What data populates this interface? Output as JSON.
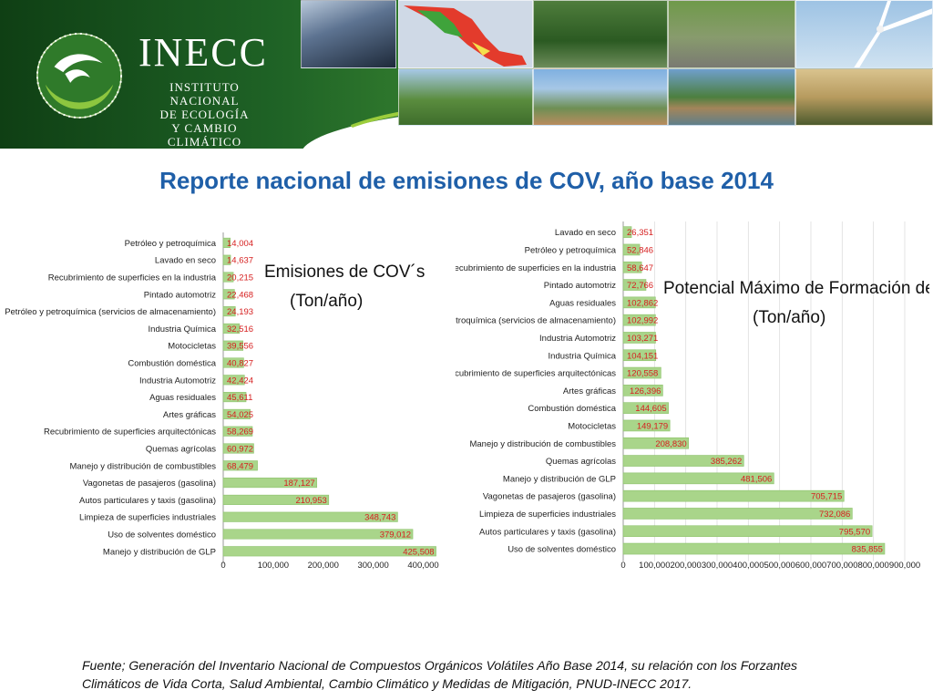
{
  "header": {
    "org_name": "INECC",
    "org_line1": "INSTITUTO NACIONAL",
    "org_line2": "DE ECOLOGÍA",
    "org_line3": "Y CAMBIO CLIMÁTICO"
  },
  "title": "Reporte nacional de emisiones de COV, año base 2014",
  "source_line1": "Fuente; Generación del Inventario Nacional de Compuestos Orgánicos Volátiles Año Base 2014, su relación con los Forzantes",
  "source_line2": "Climáticos de Vida Corta, Salud Ambiental, Cambio Climático y Medidas de Mitigación, PNUD-INECC 2017.",
  "colors": {
    "bar_fill": "#a9d58a",
    "bar_stroke": "#8cc26b",
    "value_label": "#d62020",
    "title": "#1f5fa8"
  },
  "chart_data": [
    {
      "type": "bar",
      "orientation": "horizontal",
      "title_line1": "Emisiones de COV´s",
      "title_line2": "(Ton/año)",
      "categories": [
        "Petróleo y petroquímica",
        "Lavado en seco",
        "Recubrimiento de superficies en la industria",
        "Pintado automotriz",
        "Petróleo y petroquímica (servicios de almacenamiento)",
        "Industria Química",
        "Motocicletas",
        "Combustión doméstica",
        "Industria Automotriz",
        "Aguas residuales",
        "Artes gráficas",
        "Recubrimiento de superficies arquitectónicas",
        "Quemas agrícolas",
        "Manejo y distribución de combustibles",
        "Vagonetas de pasajeros (gasolina)",
        "Autos particulares y taxis (gasolina)",
        "Limpieza de superficies industriales",
        "Uso de solventes doméstico",
        "Manejo y distribución de GLP"
      ],
      "values": [
        14004,
        14637,
        20215,
        22468,
        24193,
        32516,
        39556,
        40827,
        42424,
        45611,
        54025,
        58269,
        60972,
        68479,
        187127,
        210953,
        348743,
        379012,
        425508
      ],
      "value_labels": [
        "14,004",
        "14,637",
        "20,215",
        "22,468",
        "24,193",
        "32,516",
        "39,556",
        "40,827",
        "42,424",
        "45,611",
        "54,025",
        "58,269",
        "60,972",
        "68,479",
        "187,127",
        "210,953",
        "348,743",
        "379,012",
        "425,508"
      ],
      "xticks": [
        0,
        100000,
        200000,
        300000,
        400000
      ],
      "xtick_labels": [
        "0",
        "100,000",
        "200,000",
        "300,000",
        "400,000"
      ],
      "xlim": [
        0,
        450000
      ],
      "grid": false
    },
    {
      "type": "bar",
      "orientation": "horizontal",
      "title_line1": "Potencial Máximo de Formación de Ozono",
      "title_line2": "(Ton/año)",
      "categories": [
        "Lavado en seco",
        "Petróleo y petroquímica",
        "Recubrimiento de superficies en la industria",
        "Pintado automotriz",
        "Aguas residuales",
        "Petróleo y petroquímica (servicios de almacenamiento)",
        "Industria Automotriz",
        "Industria Química",
        "Recubrimiento de superficies arquitectónicas",
        "Artes gráficas",
        "Combustión doméstica",
        "Motocicletas",
        "Manejo y distribución de combustibles",
        "Quemas agrícolas",
        "Manejo y distribución de GLP",
        "Vagonetas de pasajeros (gasolina)",
        "Limpieza de superficies industriales",
        "Autos particulares y taxis (gasolina)",
        "Uso de solventes doméstico"
      ],
      "values": [
        26351,
        52846,
        58647,
        72766,
        102862,
        102992,
        103271,
        104151,
        120558,
        126396,
        144605,
        149179,
        208830,
        385262,
        481506,
        705715,
        732086,
        795570,
        835855
      ],
      "value_labels": [
        "26,351",
        "52,846",
        "58,647",
        "72,766",
        "102,862",
        "102,992",
        "103,271",
        "104,151",
        "120,558",
        "126,396",
        "144,605",
        "149,179",
        "208,830",
        "385,262",
        "481,506",
        "705,715",
        "732,086",
        "795,570",
        "835,855"
      ],
      "xticks": [
        0,
        100000,
        200000,
        300000,
        400000,
        500000,
        600000,
        700000,
        800000,
        900000
      ],
      "xtick_labels": [
        "0",
        "100,000",
        "200,000",
        "300,000",
        "400,000",
        "500,000",
        "600,000",
        "700,000",
        "800,000",
        "900,000"
      ],
      "xlim": [
        0,
        900000
      ],
      "grid": true
    }
  ]
}
